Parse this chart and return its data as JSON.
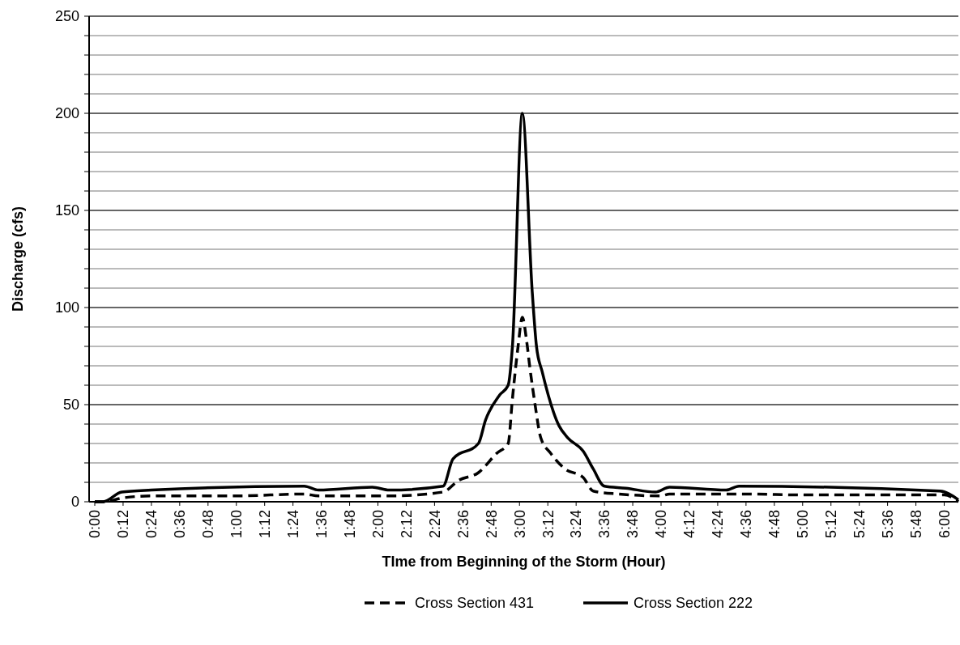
{
  "chart_data": {
    "type": "line",
    "xlabel": "TIme from Beginning of the Storm (Hour)",
    "ylabel": "Discharge (cfs)",
    "xlim": [
      -0.04,
      6.1
    ],
    "xticks": [
      {
        "value": 0,
        "label": "0:00"
      },
      {
        "value": 0.2,
        "label": "0:12"
      },
      {
        "value": 0.4,
        "label": "0:24"
      },
      {
        "value": 0.6,
        "label": "0:36"
      },
      {
        "value": 0.8,
        "label": "0:48"
      },
      {
        "value": 1,
        "label": "1:00"
      },
      {
        "value": 1.2,
        "label": "1:12"
      },
      {
        "value": 1.4,
        "label": "1:24"
      },
      {
        "value": 1.6,
        "label": "1:36"
      },
      {
        "value": 1.8,
        "label": "1:48"
      },
      {
        "value": 2,
        "label": "2:00"
      },
      {
        "value": 2.2,
        "label": "2:12"
      },
      {
        "value": 2.4,
        "label": "2:24"
      },
      {
        "value": 2.6,
        "label": "2:36"
      },
      {
        "value": 2.8,
        "label": "2:48"
      },
      {
        "value": 3,
        "label": "3:00"
      },
      {
        "value": 3.2,
        "label": "3:12"
      },
      {
        "value": 3.4,
        "label": "3:24"
      },
      {
        "value": 3.6,
        "label": "3:36"
      },
      {
        "value": 3.8,
        "label": "3:48"
      },
      {
        "value": 4,
        "label": "4:00"
      },
      {
        "value": 4.2,
        "label": "4:12"
      },
      {
        "value": 4.4,
        "label": "4:24"
      },
      {
        "value": 4.6,
        "label": "4:36"
      },
      {
        "value": 4.8,
        "label": "4:48"
      },
      {
        "value": 5,
        "label": "5:00"
      },
      {
        "value": 5.2,
        "label": "5:12"
      },
      {
        "value": 5.4,
        "label": "5:24"
      },
      {
        "value": 5.6,
        "label": "5:36"
      },
      {
        "value": 5.8,
        "label": "5:48"
      },
      {
        "value": 6,
        "label": "6:00"
      }
    ],
    "ylim": [
      0,
      250
    ],
    "yticks": [
      0,
      {
        "value": 10,
        "label": null
      },
      {
        "value": 20,
        "label": null
      },
      {
        "value": 30,
        "label": null
      },
      {
        "value": 40,
        "label": null
      },
      50,
      {
        "value": 60,
        "label": null
      },
      {
        "value": 70,
        "label": null
      },
      {
        "value": 80,
        "label": null
      },
      {
        "value": 90,
        "label": null
      },
      100,
      {
        "value": 110,
        "label": null
      },
      {
        "value": 120,
        "label": null
      },
      {
        "value": 130,
        "label": null
      },
      {
        "value": 140,
        "label": null
      },
      150,
      {
        "value": 160,
        "label": null
      },
      {
        "value": 170,
        "label": null
      },
      {
        "value": 180,
        "label": null
      },
      {
        "value": 190,
        "label": null
      },
      200,
      {
        "value": 210,
        "label": null
      },
      {
        "value": 220,
        "label": null
      },
      {
        "value": 230,
        "label": null
      },
      {
        "value": 240,
        "label": null
      },
      250
    ],
    "grid": "y",
    "legend": "bottom",
    "marker": "none",
    "series": [
      {
        "name": "Cross Section 431",
        "color": "#000000",
        "line_style": "dashed",
        "x": [
          0,
          0.06,
          0.2,
          0.4,
          1.0,
          1.48,
          1.58,
          2.0,
          2.08,
          2.46,
          2.57,
          2.71,
          2.84,
          2.92,
          2.95,
          2.99,
          3.02,
          3.05,
          3.07,
          3.11,
          3.15,
          3.22,
          3.32,
          3.45,
          3.52,
          3.7,
          4.0,
          4.06,
          4.6,
          5.0,
          6.0,
          6.1
        ],
        "values": [
          0,
          0,
          2,
          3,
          3,
          4,
          3,
          3,
          3,
          5,
          11,
          15,
          25,
          30,
          53,
          80,
          95,
          83,
          71,
          50,
          33,
          25,
          17,
          12.5,
          5.5,
          4,
          3,
          4,
          4,
          3.5,
          3.5,
          0
        ]
      },
      {
        "name": "Cross Section 222",
        "color": "#000000",
        "line_style": "solid",
        "x": [
          0,
          0.06,
          0.19,
          0.4,
          1.48,
          1.58,
          1.96,
          2.08,
          2.46,
          2.53,
          2.71,
          2.76,
          2.86,
          2.92,
          2.95,
          3.02,
          3.09,
          3.12,
          3.16,
          3.28,
          3.34,
          3.45,
          3.52,
          3.6,
          3.75,
          3.96,
          4.06,
          4.46,
          4.55,
          5.97,
          6.1
        ],
        "values": [
          0,
          0,
          5,
          6,
          8,
          6,
          7.5,
          6,
          8,
          22,
          30,
          42,
          55,
          60,
          80,
          200,
          108,
          80,
          67,
          39,
          33,
          26,
          17,
          8,
          7,
          5,
          7.5,
          6,
          8,
          5.5,
          1
        ]
      }
    ]
  }
}
